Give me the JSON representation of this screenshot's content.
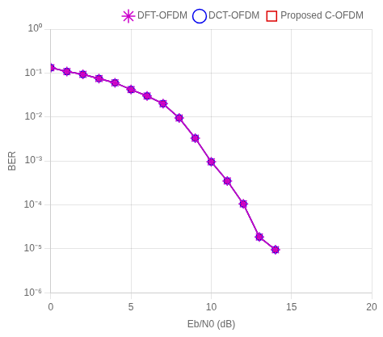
{
  "chart_data": {
    "type": "line",
    "xlabel": "Eb/N0 (dB)",
    "ylabel": "BER",
    "x": [
      0,
      1,
      2,
      3,
      4,
      5,
      6,
      7,
      8,
      9,
      10,
      11,
      12,
      13,
      14
    ],
    "series": [
      {
        "name": "Proposed C-OFDM",
        "color": "#DD0000",
        "marker": "square",
        "values": [
          0.132,
          0.108,
          0.093,
          0.075,
          0.06,
          0.042,
          0.03,
          0.02,
          0.0095,
          0.0033,
          0.00095,
          0.00035,
          0.000105,
          1.85e-05,
          9.5e-06
        ]
      },
      {
        "name": "DCT-OFDM",
        "color": "#0000EE",
        "marker": "circle",
        "values": [
          0.132,
          0.108,
          0.093,
          0.075,
          0.06,
          0.042,
          0.03,
          0.02,
          0.0095,
          0.0033,
          0.00095,
          0.00035,
          0.000105,
          1.85e-05,
          9.5e-06
        ]
      },
      {
        "name": "DFT-OFDM",
        "color": "#CC00CC",
        "marker": "star",
        "values": [
          0.132,
          0.108,
          0.093,
          0.075,
          0.06,
          0.042,
          0.03,
          0.02,
          0.0095,
          0.0033,
          0.00095,
          0.00035,
          0.000105,
          1.85e-05,
          9.5e-06
        ]
      }
    ],
    "xlim": [
      0,
      20
    ],
    "xticks": [
      0,
      5,
      10,
      15,
      20
    ],
    "ylim": [
      1e-06,
      1
    ],
    "yticks": [
      {
        "value": 1e-06,
        "label": "10⁻⁶"
      },
      {
        "value": 1e-05,
        "label": "10⁻⁵"
      },
      {
        "value": 0.0001,
        "label": "10⁻⁴"
      },
      {
        "value": 0.001,
        "label": "10⁻³"
      },
      {
        "value": 0.01,
        "label": "10⁻²"
      },
      {
        "value": 0.1,
        "label": "10⁻¹"
      },
      {
        "value": 1,
        "label": "10⁰"
      }
    ],
    "log": "y",
    "grid": true,
    "legend": "upper right"
  }
}
